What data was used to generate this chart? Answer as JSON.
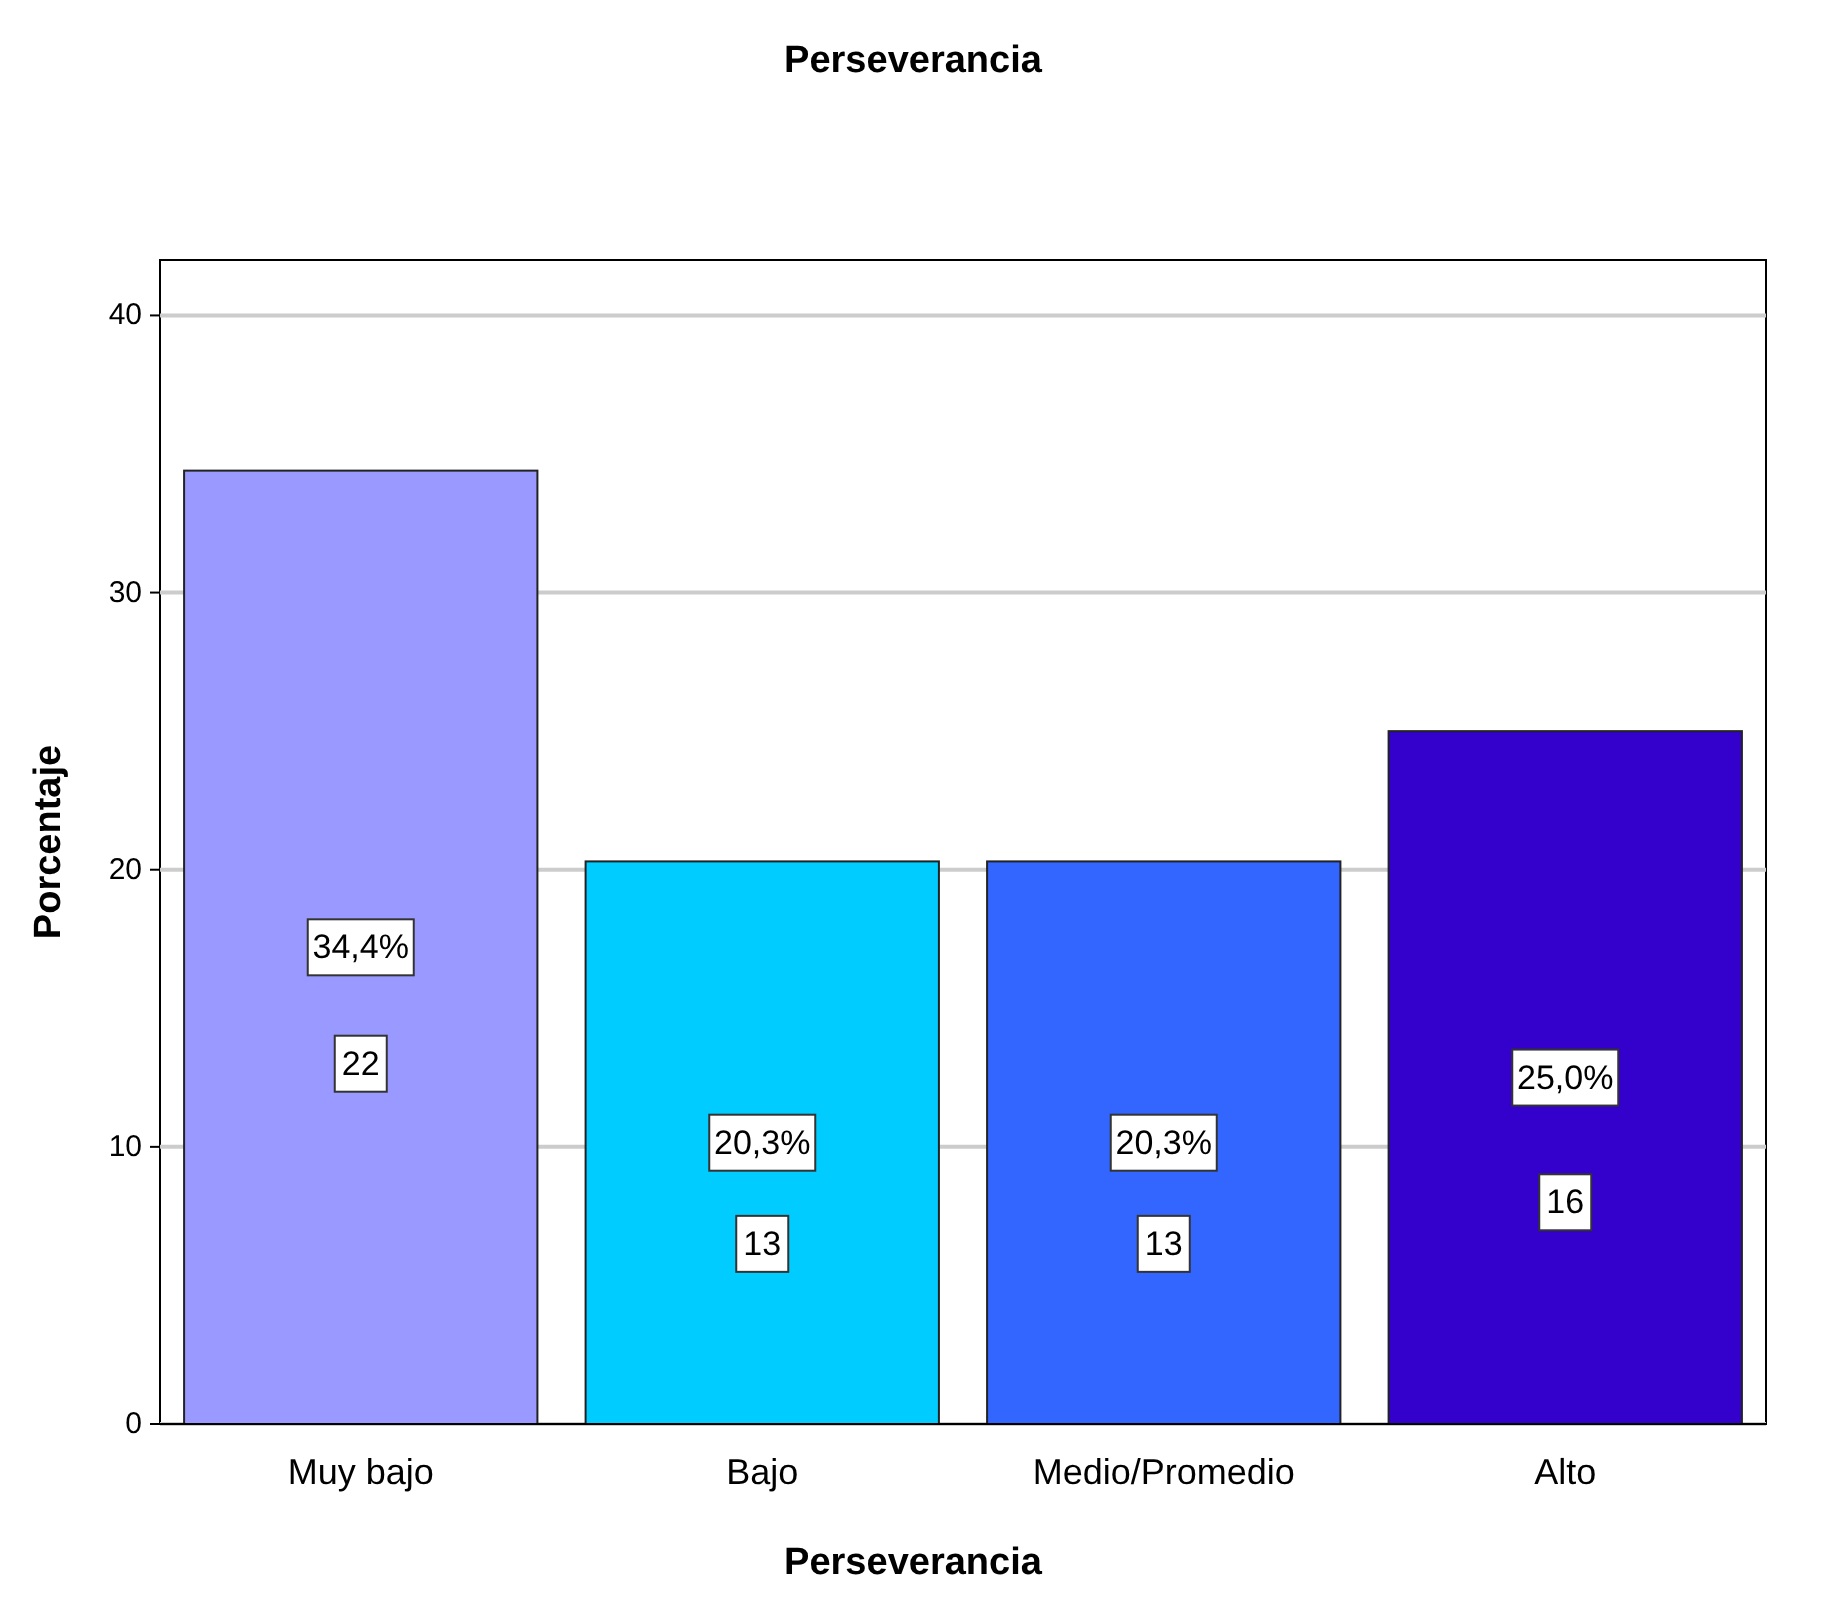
{
  "chart_data": {
    "type": "bar",
    "title": "Perseverancia",
    "xlabel": "Perseverancia",
    "ylabel": "Porcentaje",
    "categories": [
      "Muy bajo",
      "Bajo",
      "Medio/Promedio",
      "Alto"
    ],
    "values": [
      34.4,
      20.3,
      20.3,
      25.0
    ],
    "colors": [
      "#9999ff",
      "#00ccff",
      "#3366ff",
      "#3300cc"
    ],
    "value_labels": [
      "34,4%",
      "20,3%",
      "20,3%",
      "25,0%"
    ],
    "annotations": [
      {
        "text": "22",
        "x": "Muy bajo",
        "y": 13
      },
      {
        "text": "13",
        "x": "Bajo",
        "y": 6.5
      },
      {
        "text": "13",
        "x": "Medio/Promedio",
        "y": 6.5
      },
      {
        "text": "16",
        "x": "Alto",
        "y": 8
      }
    ],
    "ylim": [
      0,
      42
    ],
    "yticks": [
      0,
      10,
      20,
      30,
      40
    ],
    "grid": "y"
  }
}
